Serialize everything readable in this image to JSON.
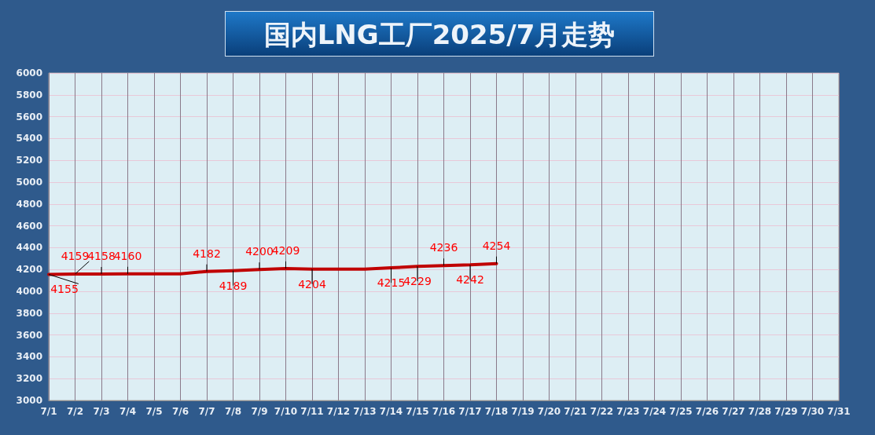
{
  "chart_data": {
    "type": "line",
    "title": "国内LNG工厂2025/7月走势",
    "categories": [
      "7/1",
      "7/2",
      "7/3",
      "7/4",
      "7/5",
      "7/6",
      "7/7",
      "7/8",
      "7/9",
      "7/10",
      "7/11",
      "7/12",
      "7/13",
      "7/14",
      "7/15",
      "7/16",
      "7/17",
      "7/18",
      "7/19",
      "7/20",
      "7/21",
      "7/22",
      "7/23",
      "7/24",
      "7/25",
      "7/26",
      "7/27",
      "7/28",
      "7/29",
      "7/30",
      "7/31"
    ],
    "series": [
      {
        "color": "#c00000",
        "values": [
          4155,
          4159,
          4158,
          4160,
          4160,
          4160,
          4182,
          4189,
          4200,
          4209,
          4204,
          4204,
          4204,
          4215,
          4229,
          4236,
          4242,
          4254,
          null,
          null,
          null,
          null,
          null,
          null,
          null,
          null,
          null,
          null,
          null,
          null,
          null
        ],
        "value_labels": [
          "4155",
          "4159",
          "4158",
          "4160",
          null,
          null,
          "4182",
          "4189",
          "4200",
          "4209",
          "4204",
          null,
          null,
          "4215",
          "4229",
          "4236",
          "4242",
          "4254",
          null,
          null,
          null,
          null,
          null,
          null,
          null,
          null,
          null,
          null,
          null,
          null,
          null
        ]
      }
    ],
    "ylim": [
      3000,
      6000
    ],
    "yticks": [
      3000,
      3200,
      3400,
      3600,
      3800,
      4000,
      4200,
      4400,
      4600,
      4800,
      5000,
      5200,
      5400,
      5600,
      5800,
      6000
    ],
    "grid": true,
    "marker": "none",
    "line_style": "solid"
  }
}
